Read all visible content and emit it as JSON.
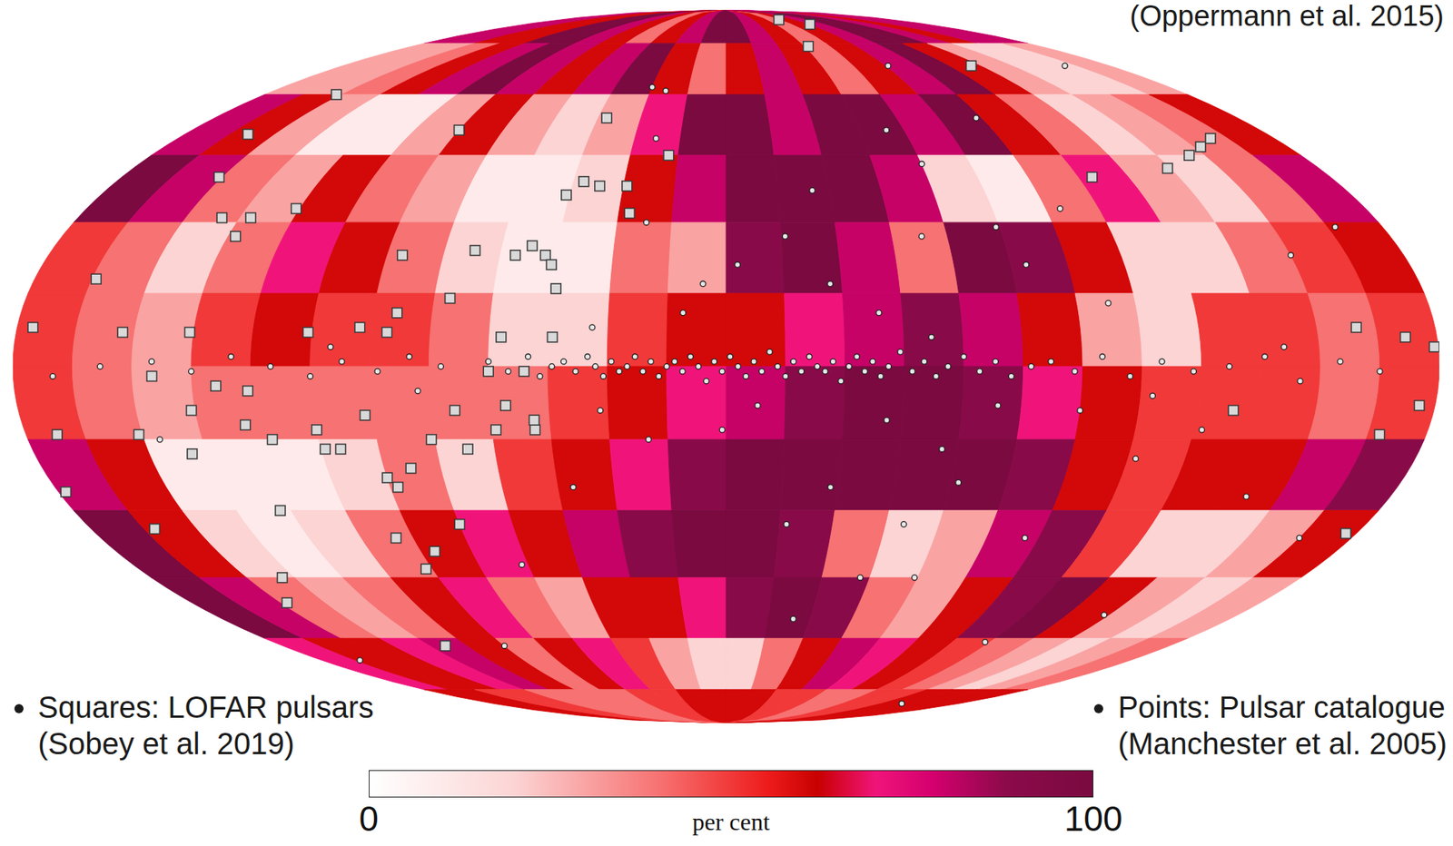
{
  "chart_data": {
    "type": "scatter",
    "annotation": "(Oppermann et al. 2015)",
    "xlim": [
      180,
      -180
    ],
    "ylim": [
      -90,
      90
    ],
    "tick_labels": false,
    "grid": false,
    "legend": "bottom",
    "heatmap": {
      "x_edges": [
        180,
        165,
        150,
        135,
        120,
        105,
        90,
        75,
        60,
        45,
        30,
        15,
        0,
        -15,
        -30,
        -45,
        -60,
        -75,
        -90,
        -105,
        -120,
        -135,
        -150,
        -165,
        -180
      ],
      "y_edges": [
        90,
        75,
        60,
        45,
        30,
        15,
        0,
        -15,
        -30,
        -45,
        -60,
        -75,
        -90
      ],
      "cells": [
        [
          80,
          80,
          60,
          60,
          100,
          100,
          80,
          60,
          40,
          60,
          80,
          100,
          100,
          80,
          60,
          40,
          60,
          80,
          100,
          100,
          80,
          60,
          80,
          80
        ],
        [
          30,
          30,
          40,
          60,
          80,
          100,
          80,
          60,
          80,
          100,
          60,
          40,
          60,
          80,
          60,
          40,
          60,
          80,
          100,
          60,
          30,
          20,
          20,
          30
        ],
        [
          80,
          60,
          30,
          10,
          10,
          30,
          60,
          30,
          20,
          30,
          70,
          100,
          100,
          80,
          100,
          100,
          80,
          100,
          60,
          40,
          20,
          30,
          40,
          60
        ],
        [
          100,
          80,
          40,
          30,
          60,
          40,
          30,
          10,
          10,
          20,
          60,
          80,
          100,
          100,
          100,
          80,
          20,
          10,
          40,
          70,
          30,
          20,
          40,
          80
        ],
        [
          50,
          40,
          20,
          40,
          70,
          60,
          40,
          20,
          10,
          10,
          40,
          30,
          90,
          100,
          80,
          40,
          100,
          90,
          60,
          20,
          20,
          40,
          50,
          60
        ],
        [
          50,
          40,
          30,
          50,
          60,
          50,
          50,
          40,
          20,
          20,
          50,
          60,
          60,
          70,
          80,
          90,
          80,
          60,
          30,
          20,
          50,
          50,
          40,
          50
        ],
        [
          50,
          40,
          30,
          40,
          40,
          40,
          40,
          40,
          40,
          50,
          60,
          70,
          80,
          90,
          100,
          100,
          90,
          70,
          60,
          50,
          50,
          50,
          40,
          50
        ],
        [
          80,
          60,
          10,
          10,
          10,
          20,
          40,
          20,
          50,
          60,
          70,
          90,
          100,
          100,
          100,
          100,
          100,
          90,
          60,
          50,
          60,
          60,
          80,
          90
        ],
        [
          100,
          60,
          20,
          10,
          20,
          40,
          60,
          70,
          60,
          80,
          90,
          100,
          100,
          90,
          40,
          20,
          30,
          80,
          90,
          50,
          20,
          20,
          30,
          60
        ],
        [
          100,
          80,
          40,
          30,
          40,
          60,
          70,
          40,
          30,
          60,
          60,
          70,
          90,
          100,
          90,
          40,
          30,
          60,
          90,
          100,
          60,
          30,
          20,
          30
        ],
        [
          70,
          60,
          60,
          70,
          80,
          60,
          40,
          60,
          70,
          50,
          30,
          20,
          20,
          40,
          60,
          80,
          70,
          60,
          50,
          40,
          30,
          20,
          30,
          40
        ],
        [
          60,
          60,
          50,
          50,
          40,
          40,
          40,
          40,
          50,
          50,
          60,
          60,
          60,
          60,
          50,
          50,
          40,
          40,
          50,
          50,
          60,
          60,
          60,
          60
        ]
      ]
    },
    "colorbar": {
      "range": [
        0,
        100
      ],
      "ticks": [
        0,
        100
      ],
      "label": "per cent"
    },
    "series": [
      {
        "name": "Squares: LOFAR pulsars",
        "reference": "(Sobey et al. 2019)",
        "marker": "square",
        "color": "#d9d9d9",
        "x": [
          -57,
          -75,
          -47,
          -115,
          152,
          159,
          90,
          42,
          151,
          121,
          140,
          132,
          133,
          164,
          176,
          153,
          136,
          106,
          93,
          86,
          84,
          86,
          71,
          67,
          56,
          52,
          48,
          46,
          44,
          46,
          42,
          37,
          29,
          27,
          18,
          -109,
          -134,
          -145,
          -152,
          -159,
          -160,
          -172,
          -168,
          -129,
          -177,
          145,
          151,
          172,
          136,
          121,
          123,
          117,
          105,
          100,
          92,
          90,
          83,
          76,
          69,
          67,
          59,
          56,
          51,
          49,
          44,
          75,
          86,
          92,
          95,
          123,
          139,
          178,
          162,
          139,
          148,
          114,
          104,
          129,
          60,
          57,
          88,
          49,
          -179,
          -176
        ],
        "y": [
          84,
          82,
          74,
          68,
          60,
          50,
          51,
          54,
          40,
          33,
          31,
          31,
          27,
          18,
          8,
          7,
          7,
          7,
          8,
          7,
          11,
          23,
          14,
          24,
          23,
          25,
          23,
          21,
          16,
          36,
          39,
          38,
          38,
          32,
          45,
          40,
          42,
          45,
          47,
          49,
          8,
          6,
          -14,
          -9,
          -35,
          -2,
          -14,
          -14,
          -9,
          -5,
          -12,
          -15,
          -13,
          -17,
          -10,
          -23,
          -21,
          -15,
          -9,
          -17,
          -13,
          -8,
          -1,
          -13,
          6,
          -33,
          -39,
          -43,
          -36,
          -30,
          -18,
          -26,
          -34,
          -45,
          -51,
          -62,
          -17,
          -4,
          -1,
          6,
          -25,
          -11,
          4,
          -8
        ]
      },
      {
        "name": "Points: Pulsar catalogue",
        "reference": "(Manchester et al. 2005)",
        "marker": "circle",
        "color": "#e8e8e8",
        "x": [
          60,
          55,
          50,
          47,
          44,
          41,
          38,
          35,
          33,
          31,
          29,
          27,
          25,
          23,
          21,
          19,
          17,
          15,
          13,
          11,
          9,
          7,
          5,
          3,
          1,
          -1,
          -3,
          -5,
          -7,
          -9,
          -11,
          -13,
          -15,
          -17,
          -19,
          -21,
          -23,
          -25,
          -27,
          -29,
          -31,
          -33,
          -35,
          -37,
          -39,
          -41,
          -44,
          -47,
          -50,
          -53,
          -56,
          -60,
          -64,
          -68,
          -72,
          -77,
          -82,
          -88,
          -95,
          -102,
          -110,
          -118,
          -127,
          -136,
          -145,
          -155,
          -165,
          72,
          80,
          88,
          97,
          105,
          115,
          125,
          135,
          145,
          158,
          170,
          6,
          -3,
          -16,
          -27,
          -39,
          -53,
          -74,
          -54,
          24,
          -41,
          -56,
          -28,
          -17,
          -42,
          -24,
          -59,
          -86,
          -107,
          -122,
          -98,
          -94,
          -150,
          -167,
          -159,
          -60,
          22,
          34,
          32,
          20,
          41,
          62,
          90,
          163,
          30,
          -25,
          -88,
          -79,
          -141,
          -165,
          -133,
          -103,
          -136,
          146,
          23,
          -76,
          -50,
          -62,
          -8,
          1,
          11,
          -52,
          -69,
          -90,
          -108,
          -141,
          78,
          100
        ],
        "y": [
          1,
          -1,
          2,
          -2,
          0,
          1,
          -1,
          2,
          0,
          -2,
          1,
          -1,
          0,
          2,
          -1,
          1,
          -2,
          0,
          1,
          -1,
          2,
          0,
          -3,
          1,
          -1,
          2,
          0,
          -2,
          1,
          -1,
          3,
          0,
          -2,
          1,
          -1,
          2,
          0,
          -1,
          1,
          -3,
          0,
          2,
          -1,
          1,
          -2,
          0,
          3,
          -1,
          1,
          -2,
          0,
          2,
          -1,
          1,
          -2,
          0,
          1,
          -1,
          2,
          -2,
          1,
          -1,
          0,
          2,
          -3,
          1,
          -1,
          0,
          2,
          -1,
          1,
          -2,
          0,
          2,
          -1,
          1,
          0,
          -2,
          17,
          21,
          27,
          17,
          11,
          27,
          29,
          51,
          61,
          -11,
          -17,
          -25,
          -33,
          -45,
          -55,
          -45,
          -36,
          -19,
          -13,
          13,
          33,
          23,
          29,
          68,
          43,
          30,
          8,
          -9,
          -15,
          -25,
          -42,
          -62,
          -66,
          62,
          37,
          54,
          21,
          -27,
          -36,
          -54,
          -61,
          -80,
          -15,
          49,
          68,
          -33,
          -24,
          -8,
          -13,
          11,
          6,
          -8,
          -9,
          -6,
          4,
          -5,
          4
        ]
      }
    ]
  }
}
